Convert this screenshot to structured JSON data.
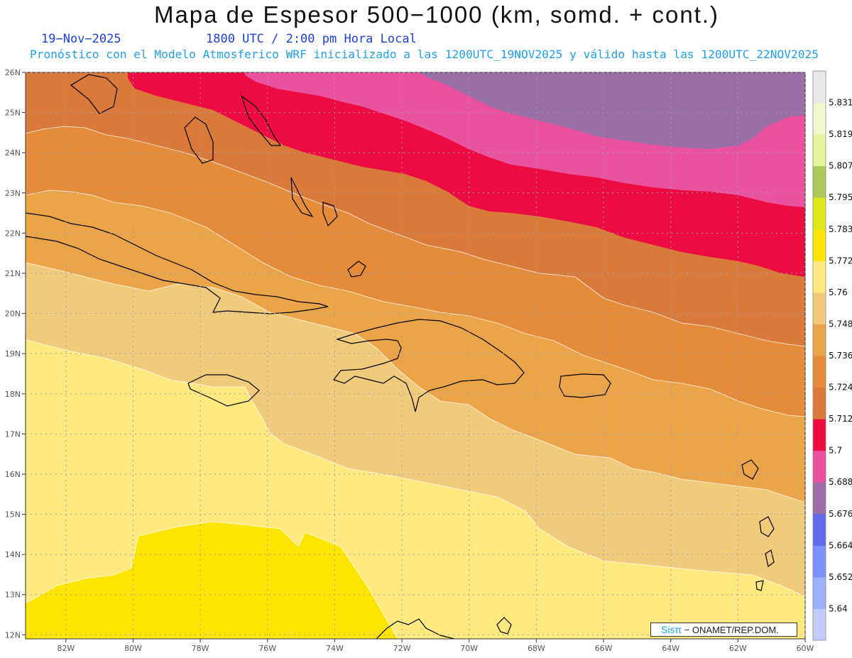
{
  "header": {
    "title": "Mapa de Espesor 500−1000 (km, somd. + cont.)",
    "date": "19−Nov−2025",
    "time": "1800 UTC / 2:00 pm Hora Local",
    "info": "Pronóstico con el Modelo Atmosferico WRF inicializado a las 1200UTC_19NOV2025 y válido hasta las  1200UTC_22NOV2025"
  },
  "map": {
    "lon_range": [
      -83.2,
      -60
    ],
    "lat_range": [
      11.9,
      26
    ],
    "lon_ticks": [
      -82,
      -80,
      -78,
      -76,
      -74,
      -72,
      -70,
      -68,
      -66,
      -64,
      -62,
      -60
    ],
    "lon_tick_labels": [
      "82W",
      "80W",
      "78W",
      "76W",
      "74W",
      "72W",
      "70W",
      "68W",
      "66W",
      "64W",
      "62W",
      "60W"
    ],
    "lat_ticks": [
      12,
      13,
      14,
      15,
      16,
      17,
      18,
      19,
      20,
      21,
      22,
      23,
      24,
      25,
      26
    ],
    "lat_tick_labels": [
      "12N",
      "13N",
      "14N",
      "15N",
      "16N",
      "17N",
      "18N",
      "19N",
      "20N",
      "21N",
      "22N",
      "23N",
      "24N",
      "25N",
      "26N"
    ],
    "grid": "dotted"
  },
  "colorbar": {
    "labels": [
      "5.64",
      "5.652",
      "5.664",
      "5.676",
      "5.688",
      "5.7",
      "5.712",
      "5.724",
      "5.736",
      "5.748",
      "5.76",
      "5.772",
      "5.783",
      "5.795",
      "5.807",
      "5.819",
      "5.831"
    ],
    "colors": [
      "#c4ccff",
      "#9db0ff",
      "#7c90ff",
      "#6069f0",
      "#9a6ea6",
      "#ea52a0",
      "#ec0c42",
      "#d97a3b",
      "#e48c3a",
      "#eba548",
      "#f1cb7c",
      "#fee97e",
      "#fde500",
      "#dfe71d",
      "#adc95a",
      "#e4f59d",
      "#f2f7cd",
      "#e9e9e9"
    ]
  },
  "credit": {
    "brand": "Sisπ",
    "text": " − ONAMET/REP.DOM."
  }
}
